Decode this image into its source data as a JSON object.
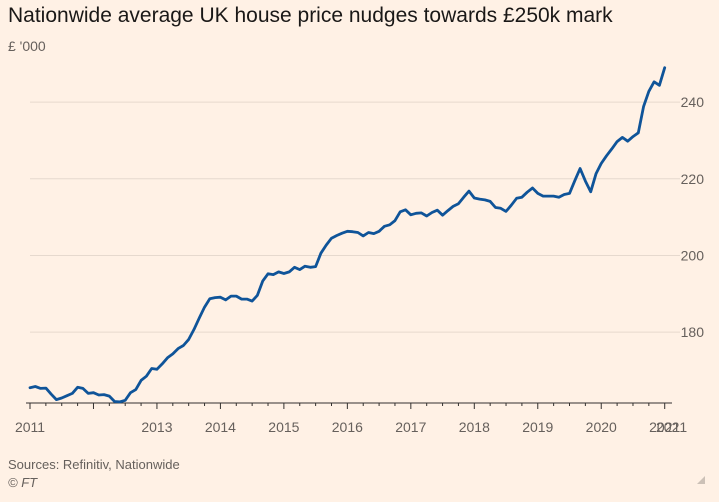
{
  "header": {
    "title": "Nationwide average UK house price nudges towards £250k mark",
    "subtitle": "£ '000"
  },
  "footer": {
    "sources": "Sources: Refinitiv, Nationwide",
    "credit": "© FT"
  },
  "colors": {
    "background": "#fff1e5",
    "line": "#0f5499",
    "grid": "#e6d9ce",
    "axis": "#33302e",
    "tick_label": "#66605c"
  },
  "chart_data": {
    "type": "line",
    "title": "Nationwide average UK house price nudges towards £250k mark",
    "ylabel": "£ '000",
    "xlim": [
      "2011-01",
      "2021-02"
    ],
    "ylim": [
      161.5,
      251
    ],
    "yticks": [
      180,
      200,
      220,
      240
    ],
    "grid": true,
    "y_axis_side": "right",
    "xtick_labels": [
      {
        "label": "2011",
        "date": "2011-01"
      },
      {
        "label": "2013",
        "date": "2013-01"
      },
      {
        "label": "2014",
        "date": "2014-01"
      },
      {
        "label": "2015",
        "date": "2015-01"
      },
      {
        "label": "2016",
        "date": "2016-01"
      },
      {
        "label": "2017",
        "date": "2017-01"
      },
      {
        "label": "2018",
        "date": "2018-01"
      },
      {
        "label": "2019",
        "date": "2019-01"
      },
      {
        "label": "2020",
        "date": "2020-01"
      },
      {
        "label": "2021",
        "date": "2021-01"
      },
      {
        "label": "2021",
        "date": "2021-02"
      }
    ],
    "series": [
      {
        "points": [
          [
            "2011-01",
            165.5
          ],
          [
            "2011-02",
            165.8
          ],
          [
            "2011-03",
            165.3
          ],
          [
            "2011-04",
            165.4
          ],
          [
            "2011-05",
            163.8
          ],
          [
            "2011-06",
            162.4
          ],
          [
            "2011-07",
            162.8
          ],
          [
            "2011-08",
            163.4
          ],
          [
            "2011-09",
            164.0
          ],
          [
            "2011-10",
            165.6
          ],
          [
            "2011-11",
            165.3
          ],
          [
            "2011-12",
            164.0
          ],
          [
            "2012-01",
            164.2
          ],
          [
            "2012-02",
            163.6
          ],
          [
            "2012-03",
            163.7
          ],
          [
            "2012-04",
            163.3
          ],
          [
            "2012-05",
            161.9
          ],
          [
            "2012-06",
            161.8
          ],
          [
            "2012-07",
            162.2
          ],
          [
            "2012-08",
            164.2
          ],
          [
            "2012-09",
            165.0
          ],
          [
            "2012-10",
            167.4
          ],
          [
            "2012-11",
            168.5
          ],
          [
            "2012-12",
            170.5
          ],
          [
            "2013-01",
            170.3
          ],
          [
            "2013-02",
            171.7
          ],
          [
            "2013-03",
            173.3
          ],
          [
            "2013-04",
            174.3
          ],
          [
            "2013-05",
            175.7
          ],
          [
            "2013-06",
            176.5
          ],
          [
            "2013-07",
            178.1
          ],
          [
            "2013-08",
            180.7
          ],
          [
            "2013-09",
            183.7
          ],
          [
            "2013-10",
            186.5
          ],
          [
            "2013-11",
            188.7
          ],
          [
            "2013-12",
            189.0
          ],
          [
            "2014-01",
            189.1
          ],
          [
            "2014-02",
            188.4
          ],
          [
            "2014-03",
            189.4
          ],
          [
            "2014-04",
            189.4
          ],
          [
            "2014-05",
            188.6
          ],
          [
            "2014-06",
            188.6
          ],
          [
            "2014-07",
            188.1
          ],
          [
            "2014-08",
            189.6
          ],
          [
            "2014-09",
            193.3
          ],
          [
            "2014-10",
            195.2
          ],
          [
            "2014-11",
            195.0
          ],
          [
            "2014-12",
            195.7
          ],
          [
            "2015-01",
            195.3
          ],
          [
            "2015-02",
            195.7
          ],
          [
            "2015-03",
            196.9
          ],
          [
            "2015-04",
            196.3
          ],
          [
            "2015-05",
            197.2
          ],
          [
            "2015-06",
            196.9
          ],
          [
            "2015-07",
            197.1
          ],
          [
            "2015-08",
            200.6
          ],
          [
            "2015-09",
            202.7
          ],
          [
            "2015-10",
            204.5
          ],
          [
            "2015-11",
            205.2
          ],
          [
            "2015-12",
            205.8
          ],
          [
            "2016-01",
            206.3
          ],
          [
            "2016-02",
            206.2
          ],
          [
            "2016-03",
            206.0
          ],
          [
            "2016-04",
            205.1
          ],
          [
            "2016-05",
            206.0
          ],
          [
            "2016-06",
            205.7
          ],
          [
            "2016-07",
            206.3
          ],
          [
            "2016-08",
            207.6
          ],
          [
            "2016-09",
            208.0
          ],
          [
            "2016-10",
            209.1
          ],
          [
            "2016-11",
            211.4
          ],
          [
            "2016-12",
            211.9
          ],
          [
            "2017-01",
            210.6
          ],
          [
            "2017-02",
            211.0
          ],
          [
            "2017-03",
            211.1
          ],
          [
            "2017-04",
            210.3
          ],
          [
            "2017-05",
            211.2
          ],
          [
            "2017-06",
            211.8
          ],
          [
            "2017-07",
            210.5
          ],
          [
            "2017-08",
            211.7
          ],
          [
            "2017-09",
            212.8
          ],
          [
            "2017-10",
            213.5
          ],
          [
            "2017-11",
            215.2
          ],
          [
            "2017-12",
            216.8
          ],
          [
            "2018-01",
            215.0
          ],
          [
            "2018-02",
            214.7
          ],
          [
            "2018-03",
            214.5
          ],
          [
            "2018-04",
            214.1
          ],
          [
            "2018-05",
            212.5
          ],
          [
            "2018-06",
            212.3
          ],
          [
            "2018-07",
            211.5
          ],
          [
            "2018-08",
            213.1
          ],
          [
            "2018-09",
            214.9
          ],
          [
            "2018-10",
            215.2
          ],
          [
            "2018-11",
            216.5
          ],
          [
            "2018-12",
            217.6
          ],
          [
            "2019-01",
            216.2
          ],
          [
            "2019-02",
            215.5
          ],
          [
            "2019-03",
            215.5
          ],
          [
            "2019-04",
            215.5
          ],
          [
            "2019-05",
            215.2
          ],
          [
            "2019-06",
            215.9
          ],
          [
            "2019-07",
            216.2
          ],
          [
            "2019-08",
            219.5
          ],
          [
            "2019-09",
            222.7
          ],
          [
            "2019-10",
            219.4
          ],
          [
            "2019-11",
            216.6
          ],
          [
            "2019-12",
            221.3
          ],
          [
            "2020-01",
            224.0
          ],
          [
            "2020-02",
            226.0
          ],
          [
            "2020-03",
            227.8
          ],
          [
            "2020-04",
            229.7
          ],
          [
            "2020-05",
            230.8
          ],
          [
            "2020-06",
            229.8
          ],
          [
            "2020-07",
            231.0
          ],
          [
            "2020-08",
            232.0
          ],
          [
            "2020-09",
            238.9
          ],
          [
            "2020-10",
            242.8
          ],
          [
            "2020-11",
            245.3
          ],
          [
            "2020-12",
            244.4
          ],
          [
            "2021-01",
            249.0
          ]
        ]
      }
    ]
  }
}
